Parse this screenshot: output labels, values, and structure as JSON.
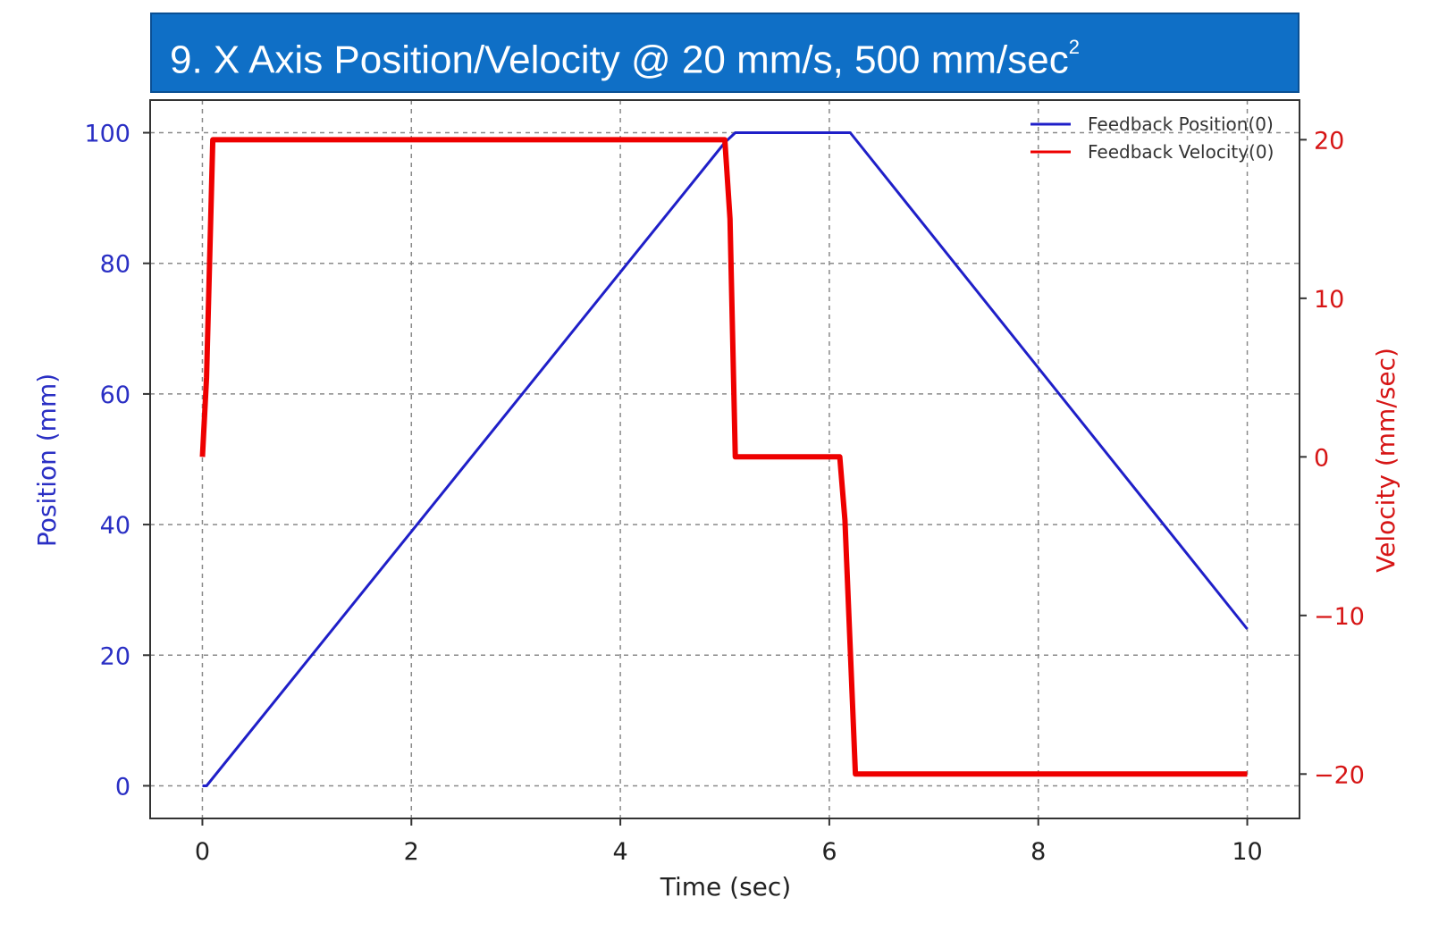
{
  "chart_data": {
    "type": "line",
    "title": "9. X Axis Position/Velocity @ 20 mm/s, 500 mm/sec",
    "title_superscript": "2",
    "xlabel": "Time (sec)",
    "ylabel_left": "Position (mm)",
    "ylabel_right": "Velocity (mm/sec)",
    "xlim": [
      -0.5,
      10.5
    ],
    "ylim_left": [
      -5,
      105
    ],
    "ylim_right": [
      -22.8,
      22.5
    ],
    "x_ticks": [
      0,
      2,
      4,
      6,
      8,
      10
    ],
    "x_tick_labels": [
      "0",
      "2",
      "4",
      "6",
      "8",
      "10"
    ],
    "y_left_ticks": [
      0,
      20,
      40,
      60,
      80,
      100
    ],
    "y_left_tick_labels": [
      "0",
      "20",
      "40",
      "60",
      "80",
      "100"
    ],
    "y_right_ticks": [
      -20,
      -10,
      0,
      10,
      20
    ],
    "y_right_tick_labels": [
      "−20",
      "−10",
      "0",
      "10",
      "20"
    ],
    "grid": true,
    "legend_position": "top-right",
    "series": [
      {
        "name": "Feedback Position(0)",
        "axis": "left",
        "color": "#1f1fc8",
        "x": [
          0,
          0.04,
          5.0,
          5.1,
          6.2,
          10.0
        ],
        "y": [
          0,
          0,
          98.5,
          100,
          100,
          24
        ]
      },
      {
        "name": "Feedback Velocity(0)",
        "axis": "right",
        "color": "#ee0000",
        "x": [
          0,
          0.04,
          0.1,
          5.0,
          5.05,
          5.1,
          6.1,
          6.15,
          6.25,
          10.0
        ],
        "y": [
          0,
          5,
          20,
          20,
          15,
          0,
          0,
          -4,
          -20,
          -20
        ]
      }
    ]
  }
}
